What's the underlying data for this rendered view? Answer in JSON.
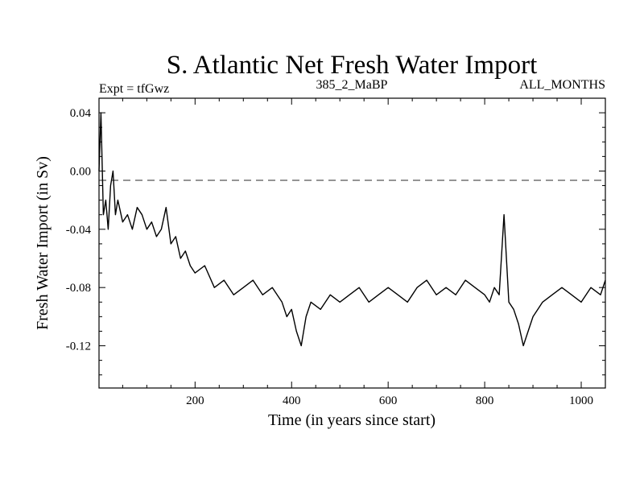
{
  "chart_data": {
    "type": "line",
    "title": "S. Atlantic Net Fresh Water Import",
    "subtitle_left": "Expt = tfGwz",
    "subtitle_center": "385_2_MaBP",
    "subtitle_right": "ALL_MONTHS",
    "xlabel": "Time (in years since start)",
    "ylabel": "Fresh Water Import (in Sv)",
    "xlim": [
      1,
      1050
    ],
    "ylim": [
      -0.149,
      0.05
    ],
    "xticks": [
      200,
      400,
      600,
      800,
      1000
    ],
    "xtick_labels": [
      "200",
      "400",
      "600",
      "800",
      "1000"
    ],
    "yticks": [
      0.04,
      0.0,
      -0.04,
      -0.08,
      -0.12
    ],
    "ytick_labels": [
      "0.04",
      "0.00",
      "-0.04",
      "-0.08",
      "-0.12"
    ],
    "reference_line": {
      "y": 0.0,
      "style": "dashed"
    },
    "series": [
      {
        "name": "Net Fresh Water Import",
        "color": "#000000",
        "x": [
          1,
          5,
          10,
          15,
          20,
          25,
          30,
          35,
          40,
          50,
          60,
          70,
          80,
          90,
          100,
          110,
          120,
          130,
          140,
          150,
          160,
          170,
          180,
          190,
          200,
          220,
          240,
          260,
          280,
          300,
          320,
          340,
          360,
          380,
          390,
          400,
          410,
          420,
          430,
          440,
          460,
          480,
          500,
          520,
          540,
          560,
          580,
          600,
          620,
          640,
          660,
          680,
          700,
          720,
          740,
          760,
          780,
          800,
          810,
          820,
          830,
          840,
          850,
          860,
          870,
          880,
          890,
          900,
          920,
          940,
          960,
          980,
          1000,
          1020,
          1040,
          1050
        ],
        "values": [
          0.0,
          0.04,
          -0.03,
          -0.02,
          -0.04,
          -0.01,
          0.0,
          -0.03,
          -0.02,
          -0.035,
          -0.03,
          -0.04,
          -0.025,
          -0.03,
          -0.04,
          -0.035,
          -0.045,
          -0.04,
          -0.025,
          -0.05,
          -0.045,
          -0.06,
          -0.055,
          -0.065,
          -0.07,
          -0.065,
          -0.08,
          -0.075,
          -0.085,
          -0.08,
          -0.075,
          -0.085,
          -0.08,
          -0.09,
          -0.1,
          -0.095,
          -0.11,
          -0.12,
          -0.1,
          -0.09,
          -0.095,
          -0.085,
          -0.09,
          -0.085,
          -0.08,
          -0.09,
          -0.085,
          -0.08,
          -0.085,
          -0.09,
          -0.08,
          -0.075,
          -0.085,
          -0.08,
          -0.085,
          -0.075,
          -0.08,
          -0.085,
          -0.09,
          -0.08,
          -0.085,
          -0.03,
          -0.09,
          -0.095,
          -0.105,
          -0.12,
          -0.11,
          -0.1,
          -0.09,
          -0.085,
          -0.08,
          -0.085,
          -0.09,
          -0.08,
          -0.085,
          -0.075
        ]
      }
    ]
  }
}
